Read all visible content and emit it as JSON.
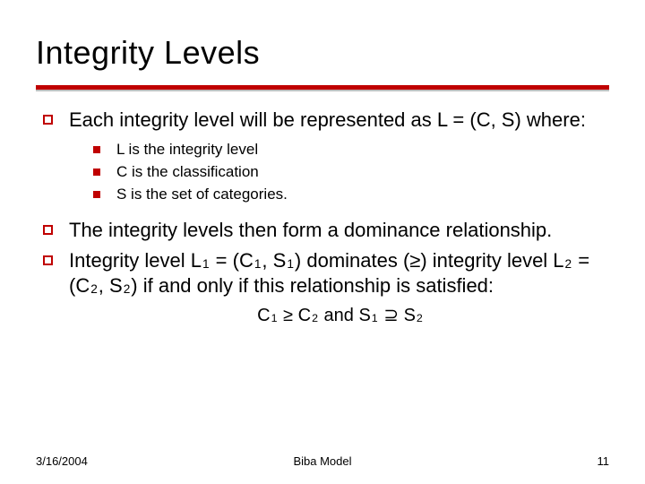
{
  "colors": {
    "accent": "#c00000",
    "rule_grey": "#bfbfbf",
    "background": "#ffffff",
    "text": "#000000"
  },
  "title": "Integrity Levels",
  "bullets": {
    "b1": "Each integrity level will be represented as  L = (C, S) where:",
    "sub1": "L is the integrity level",
    "sub2": "C is the classification",
    "sub3": "S is the set of categories.",
    "b2": "The integrity levels then form a dominance relationship.",
    "b3_pre": "Integrity level L",
    "b3_eq1": " = (C",
    "b3_s1": ", S",
    "b3_dom": ") dominates (≥) integrity level L",
    "b3_eq2": " = (C",
    "b3_s2": ", S",
    "b3_end": ") if and only if this relationship is satisfied:"
  },
  "subscripts": {
    "one": "1",
    "two": "2"
  },
  "formula": {
    "c": "C",
    "ge": " ≥ C",
    "and": " and S",
    "sup": " ⊇ S"
  },
  "footer": {
    "date": "3/16/2004",
    "center": "Biba Model",
    "page": "11"
  }
}
